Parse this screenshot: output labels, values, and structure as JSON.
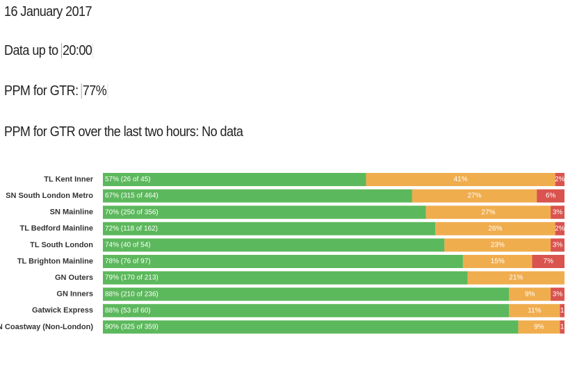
{
  "header": {
    "date": "16 January 2017",
    "data_up_to_label": "Data up to",
    "data_up_to": "20:00",
    "ppm_label": "PPM for GTR:",
    "ppm": "77%",
    "ppm_two_hours": "PPM for GTR over the last two hours: No data"
  },
  "chart_data": {
    "type": "stacked-bar-horizontal",
    "categories": [
      "TL Kent Inner",
      "SN South London Metro",
      "SN Mainline",
      "TL Bedford Mainline",
      "TL South London",
      "TL Brighton Mainline",
      "GN Outers",
      "GN Inners",
      "Gatwick Express",
      "SN Coastway (Non-London)"
    ],
    "xlim": [
      0,
      100
    ],
    "series": [
      {
        "color": "#5cb85c",
        "values": [
          57,
          67,
          70,
          72,
          74,
          78,
          79,
          88,
          88,
          90
        ],
        "value_labels": [
          "57% (26 of 45)",
          "67% (315 of 464)",
          "70% (250 of 356)",
          "72% (118 of 162)",
          "74% (40 of 54)",
          "78% (76 of 97)",
          "79% (170 of 213)",
          "88% (210 of 236)",
          "88% (53 of 60)",
          "90% (325 of 359)"
        ]
      },
      {
        "color": "#f0ad4e",
        "values": [
          41,
          27,
          27,
          26,
          23,
          15,
          21,
          9,
          11,
          9
        ],
        "value_labels": [
          "41%",
          "27%",
          "27%",
          "26%",
          "23%",
          "15%",
          "21%",
          "9%",
          "11%",
          "9%"
        ]
      },
      {
        "color": "#d9534f",
        "values": [
          2,
          6,
          3,
          2,
          3,
          7,
          null,
          3,
          1,
          1
        ],
        "value_labels": [
          "2%",
          "6%",
          "3%",
          "2%",
          "3%",
          "7%",
          null,
          "3%",
          "1",
          "1"
        ]
      }
    ]
  }
}
